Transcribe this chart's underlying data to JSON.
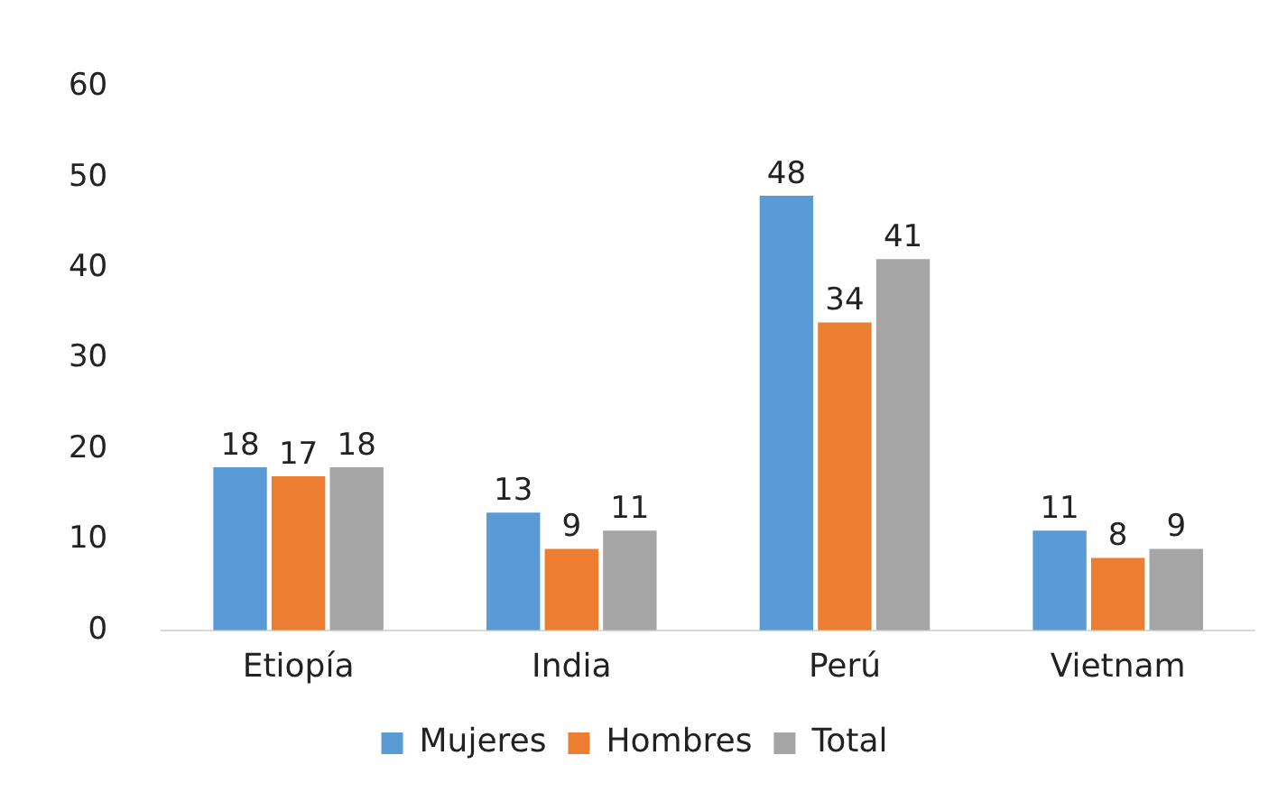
{
  "chart_data": {
    "type": "bar",
    "categories": [
      "Etiopía",
      "India",
      "Perú",
      "Vietnam"
    ],
    "series": [
      {
        "name": "Mujeres",
        "color": "#5b9bd5",
        "values": [
          18,
          13,
          48,
          11
        ]
      },
      {
        "name": "Hombres",
        "color": "#ed7d31",
        "values": [
          17,
          9,
          34,
          8
        ]
      },
      {
        "name": "Total",
        "color": "#a5a5a5",
        "values": [
          18,
          11,
          41,
          9
        ]
      }
    ],
    "ylim": [
      0,
      60
    ],
    "yticks": [
      0,
      10,
      20,
      30,
      40,
      50,
      60
    ],
    "grid": false,
    "legend": "bottom",
    "data_labels": true
  }
}
